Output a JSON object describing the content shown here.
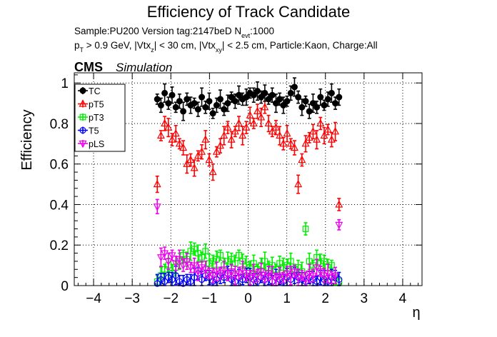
{
  "chart_data": {
    "type": "scatter",
    "title": "Efficiency of Track Candidate",
    "info_line1": "Sample:PU200   Version tag:2147beD  N",
    "info_line1_sub": "evt",
    "info_line1_end": ":1000",
    "info_line2": [
      {
        "t": "p",
        "s": "n"
      },
      {
        "t": "T",
        "s": "sub"
      },
      {
        "t": " > 0.9 GeV, |Vtx",
        "s": "n"
      },
      {
        "t": "z",
        "s": "sub"
      },
      {
        "t": "| < 30 cm, |Vtx",
        "s": "n"
      },
      {
        "t": "xy",
        "s": "sub"
      },
      {
        "t": "| < 2.5 cm, Particle:Kaon, Charge:All",
        "s": "n"
      }
    ],
    "cms_label": "CMS",
    "sim_label": "Simulation",
    "xlabel": "η",
    "ylabel": "Efficiency",
    "xlim": [
      -4.5,
      4.5
    ],
    "ylim": [
      0,
      1.05
    ],
    "xticks": [
      -4,
      -3,
      -2,
      -1,
      0,
      1,
      2,
      3,
      4
    ],
    "xtick_labels": [
      "−4",
      "−3",
      "−2",
      "−1",
      "0",
      "1",
      "2",
      "3",
      "4"
    ],
    "yticks": [
      0,
      0.2,
      0.4,
      0.6,
      0.8,
      1
    ],
    "ytick_labels": [
      "0",
      "0.2",
      "0.4",
      "0.6",
      "0.8",
      "1"
    ],
    "grid": true,
    "legend_position": "top-left",
    "bin_range": [
      -2.4,
      2.4
    ],
    "bin_count": 50,
    "series": [
      {
        "name": "TC",
        "color": "#000000",
        "marker": "filled-circle",
        "values": [
          0.92,
          0.89,
          0.95,
          0.9,
          0.94,
          0.88,
          0.91,
          0.86,
          0.92,
          0.89,
          0.9,
          0.87,
          0.93,
          0.88,
          0.91,
          0.85,
          0.89,
          0.92,
          0.87,
          0.9,
          0.93,
          0.91,
          0.94,
          0.92,
          0.93,
          0.95,
          0.94,
          0.96,
          0.93,
          0.95,
          0.92,
          0.94,
          0.9,
          0.92,
          0.89,
          0.91,
          0.95,
          0.98,
          0.93,
          0.88,
          0.91,
          0.86,
          0.9,
          0.88,
          0.93,
          0.89,
          0.92,
          0.95,
          0.9,
          0.93
        ]
      },
      {
        "name": "pT5",
        "color": "#ff0000",
        "marker": "open-triangle",
        "values": [
          0.5,
          0.74,
          0.8,
          0.78,
          0.72,
          0.75,
          0.7,
          0.68,
          0.6,
          0.62,
          0.58,
          0.64,
          0.66,
          0.72,
          0.62,
          0.56,
          0.66,
          0.69,
          0.74,
          0.78,
          0.72,
          0.76,
          0.8,
          0.74,
          0.78,
          0.84,
          0.8,
          0.86,
          0.83,
          0.88,
          0.8,
          0.76,
          0.78,
          0.74,
          0.7,
          0.75,
          0.7,
          0.68,
          0.5,
          0.62,
          0.7,
          0.73,
          0.76,
          0.72,
          0.8,
          0.74,
          0.77,
          0.72,
          0.76,
          0.4
        ]
      },
      {
        "name": "pT3",
        "color": "#00ee00",
        "marker": "open-square",
        "values": [
          0.02,
          0.05,
          0.08,
          0.1,
          0.06,
          0.09,
          0.12,
          0.15,
          0.13,
          0.17,
          0.18,
          0.16,
          0.14,
          0.17,
          0.11,
          0.12,
          0.13,
          0.15,
          0.1,
          0.12,
          0.13,
          0.11,
          0.15,
          0.12,
          0.1,
          0.09,
          0.11,
          0.08,
          0.1,
          0.12,
          0.09,
          0.1,
          0.08,
          0.11,
          0.09,
          0.1,
          0.12,
          0.08,
          0.09,
          0.07,
          0.28,
          0.12,
          0.1,
          0.14,
          0.11,
          0.12,
          0.09,
          0.1,
          0.04,
          0.02
        ]
      },
      {
        "name": "T5",
        "color": "#0000ff",
        "marker": "open-circle",
        "values": [
          0.01,
          0.03,
          0.02,
          0.04,
          0.03,
          0.05,
          0.02,
          0.01,
          0.03,
          0.02,
          0.04,
          0.06,
          0.03,
          0.05,
          0.04,
          0.02,
          0.03,
          0.05,
          0.04,
          0.06,
          0.03,
          0.02,
          0.04,
          0.03,
          0.05,
          0.04,
          0.03,
          0.02,
          0.04,
          0.03,
          0.05,
          0.02,
          0.04,
          0.03,
          0.02,
          0.04,
          0.03,
          0.05,
          0.04,
          0.03,
          0.02,
          0.04,
          0.03,
          0.02,
          0.04,
          0.03,
          0.02,
          0.04,
          0.05,
          0.03
        ]
      },
      {
        "name": "pLS",
        "color": "#ee00ee",
        "marker": "open-triangle-down",
        "values": [
          0.39,
          0.14,
          0.16,
          0.12,
          0.15,
          0.11,
          0.13,
          0.1,
          0.12,
          0.09,
          0.1,
          0.07,
          0.09,
          0.08,
          0.06,
          0.05,
          0.07,
          0.06,
          0.08,
          0.05,
          0.07,
          0.05,
          0.06,
          0.08,
          0.05,
          0.04,
          0.06,
          0.05,
          0.07,
          0.04,
          0.06,
          0.05,
          0.03,
          0.05,
          0.04,
          0.06,
          0.05,
          0.07,
          0.04,
          0.05,
          0.03,
          0.06,
          0.05,
          0.09,
          0.07,
          0.05,
          0.06,
          0.04,
          0.05,
          0.3
        ]
      }
    ]
  }
}
